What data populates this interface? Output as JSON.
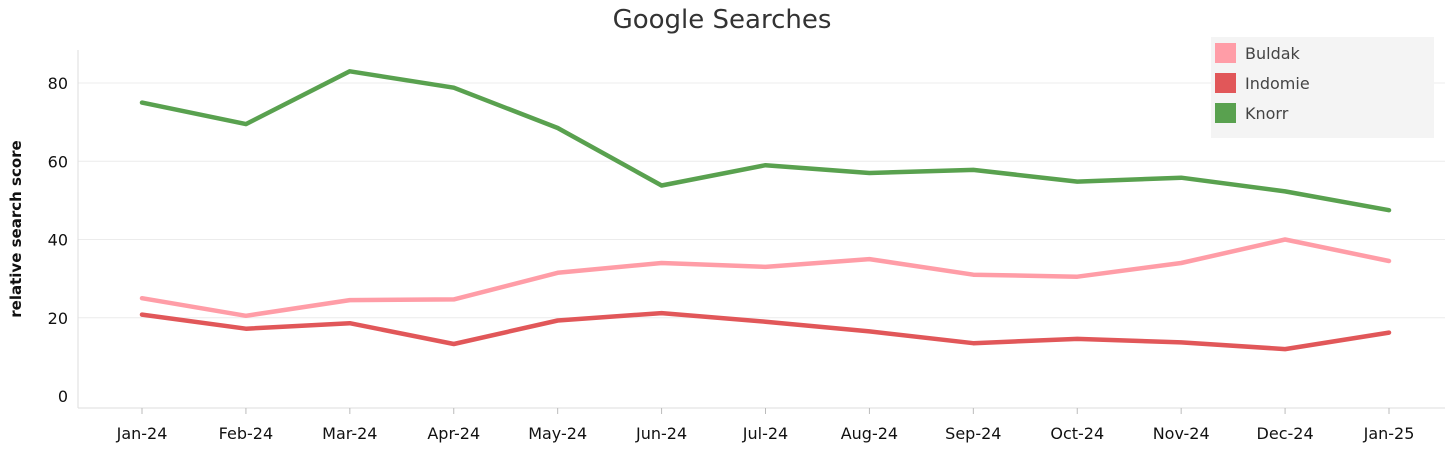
{
  "chart_data": {
    "type": "line",
    "title": "Google Searches",
    "xlabel": "",
    "ylabel": "relative search score",
    "categories": [
      "Jan-24",
      "Feb-24",
      "Mar-24",
      "Apr-24",
      "May-24",
      "Jun-24",
      "Jul-24",
      "Aug-24",
      "Sep-24",
      "Oct-24",
      "Nov-24",
      "Dec-24",
      "Jan-25"
    ],
    "y_ticks": [
      0,
      20,
      40,
      60,
      80
    ],
    "ylim": [
      -3,
      88
    ],
    "grid": true,
    "legend_position": "top-right",
    "series": [
      {
        "name": "Buldak",
        "color": "#ff9da7",
        "values": [
          25,
          20.5,
          24.5,
          24.7,
          31.5,
          34,
          33,
          35,
          31,
          30.5,
          34,
          40,
          34.5
        ]
      },
      {
        "name": "Indomie",
        "color": "#e15759",
        "values": [
          20.8,
          17.2,
          18.6,
          13.3,
          19.3,
          21.2,
          19,
          16.5,
          13.5,
          14.6,
          13.7,
          12,
          16.2
        ]
      },
      {
        "name": "Knorr",
        "color": "#59a14f",
        "values": [
          75,
          69.5,
          83,
          78.8,
          68.5,
          53.8,
          59,
          57,
          57.8,
          54.8,
          55.8,
          52.3,
          47.5
        ]
      }
    ]
  }
}
